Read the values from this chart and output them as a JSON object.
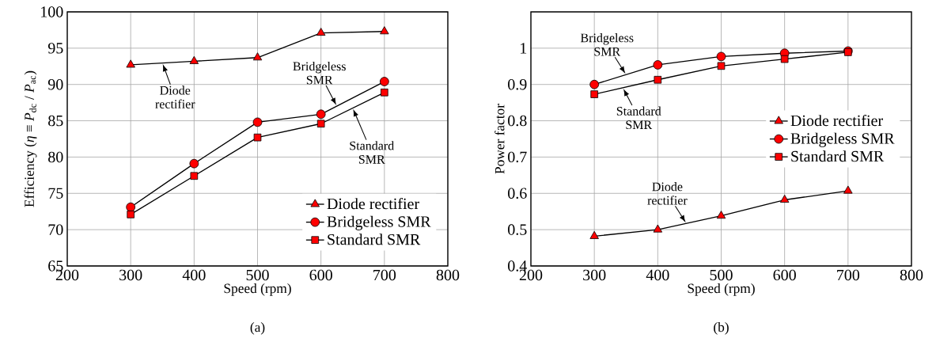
{
  "chart_data": [
    {
      "type": "line",
      "xlabel": "Speed (rpm)",
      "ylabel": "Efficiency (*η* ≡ *P*$_{dc}$ / *P*$_{ac}$)",
      "x": [
        300,
        400,
        500,
        600,
        700
      ],
      "series": [
        {
          "name": "Diode rectifier",
          "color": "#ff0000",
          "marker": "triangle",
          "values": [
            92.7,
            93.2,
            93.7,
            97.1,
            97.3
          ]
        },
        {
          "name": "Bridgeless SMR",
          "color": "#ff0000",
          "marker": "circle",
          "values": [
            73.1,
            79.1,
            84.8,
            85.9,
            90.4
          ]
        },
        {
          "name": "Standard SMR",
          "color": "#ff0000",
          "marker": "square",
          "values": [
            72.1,
            77.4,
            82.7,
            84.6,
            88.9
          ]
        }
      ],
      "xlim": [
        200,
        800
      ],
      "xticks": [
        200,
        300,
        400,
        500,
        600,
        700,
        800
      ],
      "ylim": [
        65,
        100
      ],
      "yticks": [
        65,
        70,
        75,
        80,
        85,
        90,
        95,
        100
      ],
      "grid": true,
      "legend": "bottom right",
      "line_style": "solid",
      "annotations": [
        {
          "text": "Diode rectifier",
          "x": 350,
          "y": 92.95
        },
        {
          "text": "Bridgeless SMR",
          "x": 625,
          "y": 87.0
        },
        {
          "text": "Standard SMR",
          "x": 650,
          "y": 86.75
        },
        "(a)"
      ]
    },
    {
      "type": "line",
      "xlabel": "Speed (rpm)",
      "ylabel": "Power factor",
      "x": [
        300,
        400,
        500,
        600,
        700
      ],
      "series": [
        {
          "name": "Diode rectifier",
          "color": "#ff0000",
          "marker": "triangle",
          "values": [
            0.482,
            0.5,
            0.538,
            0.582,
            0.607
          ]
        },
        {
          "name": "Bridgeless SMR",
          "color": "#ff0000",
          "marker": "circle",
          "values": [
            0.9,
            0.954,
            0.977,
            0.986,
            0.992
          ]
        },
        {
          "name": "Standard SMR",
          "color": "#ff0000",
          "marker": "square",
          "values": [
            0.873,
            0.913,
            0.951,
            0.97,
            0.989
          ]
        }
      ],
      "xlim": [
        200,
        800
      ],
      "xticks": [
        200,
        300,
        400,
        500,
        600,
        700,
        800
      ],
      "ylim": [
        0.4,
        1.1
      ],
      "yticks": [
        0.4,
        0.5,
        0.6,
        0.7,
        0.8,
        0.9,
        1
      ],
      "grid": true,
      "legend": "right",
      "line_style": "solid",
      "annotations": [
        {
          "text": "Bridgeless SMR",
          "x": 350,
          "y": 0.927
        },
        {
          "text": "Standard SMR",
          "x": 345,
          "y": 0.891
        },
        {
          "text": "Diode rectifier",
          "x": 445,
          "y": 0.517
        },
        "(b)"
      ]
    }
  ]
}
